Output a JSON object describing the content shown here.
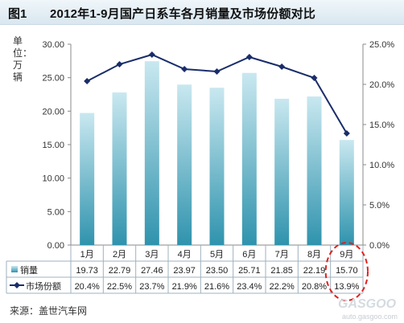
{
  "figure": {
    "label": "图1",
    "title": "2012年1-9月国产日系车各月销量及市场份额对比"
  },
  "unit_label": "单位：万辆",
  "source": "来源：盖世汽车网",
  "watermark": {
    "logo": "GASGOO",
    "url": "auto.gasgoo.com"
  },
  "colors": {
    "bar_top": "#c9e8f0",
    "bar_bottom": "#2f93ad",
    "line": "#1a2d6b",
    "highlight": "#e02020"
  },
  "chart_data": {
    "type": "bar",
    "categories": [
      "1月",
      "2月",
      "3月",
      "4月",
      "5月",
      "6月",
      "7月",
      "8月",
      "9月"
    ],
    "series": [
      {
        "name": "销量",
        "type": "bar",
        "axis": "left",
        "values": [
          19.73,
          22.79,
          27.46,
          23.97,
          23.5,
          25.71,
          21.85,
          22.19,
          15.7
        ],
        "labels": [
          "19.73",
          "22.79",
          "27.46",
          "23.97",
          "23.50",
          "25.71",
          "21.85",
          "22.19",
          "15.70"
        ]
      },
      {
        "name": "市场份额",
        "type": "line",
        "axis": "right",
        "values": [
          20.4,
          22.5,
          23.7,
          21.9,
          21.6,
          23.4,
          22.2,
          20.8,
          13.9
        ],
        "labels": [
          "20.4%",
          "22.5%",
          "23.7%",
          "21.9%",
          "21.6%",
          "23.4%",
          "22.2%",
          "20.8%",
          "13.9%"
        ]
      }
    ],
    "left_axis": {
      "range": [
        0,
        30
      ],
      "ticks": [
        "0.00",
        "5.00",
        "10.00",
        "15.00",
        "20.00",
        "25.00",
        "30.00"
      ]
    },
    "right_axis": {
      "range": [
        0,
        25
      ],
      "ticks": [
        "0.0%",
        "5.0%",
        "10.0%",
        "15.0%",
        "20.0%",
        "25.0%"
      ]
    },
    "grid": false,
    "legend": "data-table",
    "highlight_category": "9月"
  }
}
